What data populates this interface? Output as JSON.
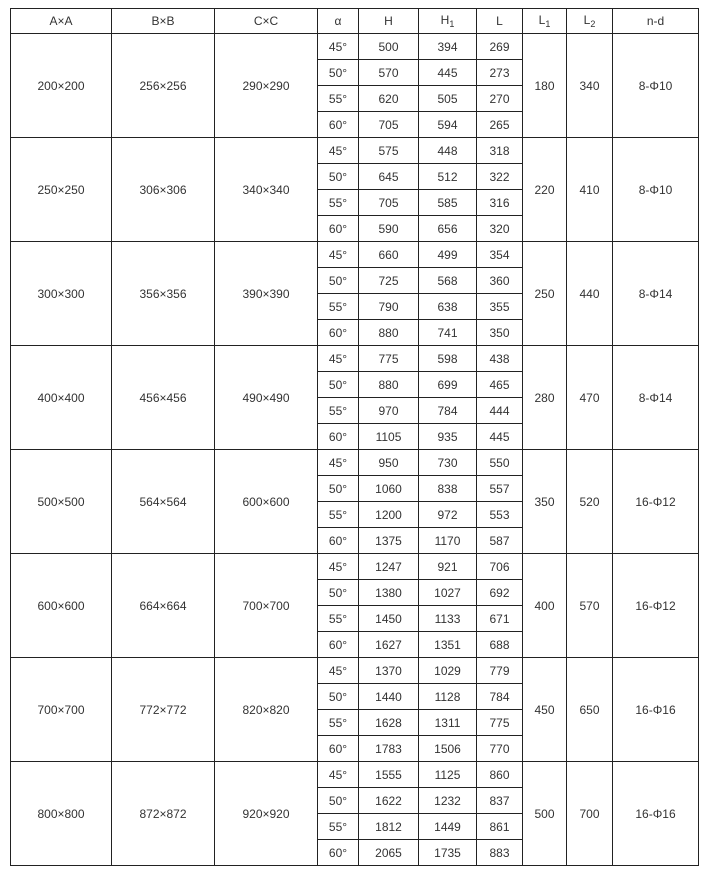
{
  "headers": [
    "A×A",
    "B×B",
    "C×C",
    "α",
    "H",
    "H1",
    "L",
    "L1",
    "L2",
    "n-d"
  ],
  "groups": [
    {
      "a": "200×200",
      "b": "256×256",
      "c": "290×290",
      "l1": "180",
      "l2": "340",
      "nd": "8-Φ10",
      "rows": [
        [
          "45°",
          "500",
          "394",
          "269"
        ],
        [
          "50°",
          "570",
          "445",
          "273"
        ],
        [
          "55°",
          "620",
          "505",
          "270"
        ],
        [
          "60°",
          "705",
          "594",
          "265"
        ]
      ]
    },
    {
      "a": "250×250",
      "b": "306×306",
      "c": "340×340",
      "l1": "220",
      "l2": "410",
      "nd": "8-Φ10",
      "rows": [
        [
          "45°",
          "575",
          "448",
          "318"
        ],
        [
          "50°",
          "645",
          "512",
          "322"
        ],
        [
          "55°",
          "705",
          "585",
          "316"
        ],
        [
          "60°",
          "590",
          "656",
          "320"
        ]
      ]
    },
    {
      "a": "300×300",
      "b": "356×356",
      "c": "390×390",
      "l1": "250",
      "l2": "440",
      "nd": "8-Φ14",
      "rows": [
        [
          "45°",
          "660",
          "499",
          "354"
        ],
        [
          "50°",
          "725",
          "568",
          "360"
        ],
        [
          "55°",
          "790",
          "638",
          "355"
        ],
        [
          "60°",
          "880",
          "741",
          "350"
        ]
      ]
    },
    {
      "a": "400×400",
      "b": "456×456",
      "c": "490×490",
      "l1": "280",
      "l2": "470",
      "nd": "8-Φ14",
      "rows": [
        [
          "45°",
          "775",
          "598",
          "438"
        ],
        [
          "50°",
          "880",
          "699",
          "465"
        ],
        [
          "55°",
          "970",
          "784",
          "444"
        ],
        [
          "60°",
          "1105",
          "935",
          "445"
        ]
      ]
    },
    {
      "a": "500×500",
      "b": "564×564",
      "c": "600×600",
      "l1": "350",
      "l2": "520",
      "nd": "16-Φ12",
      "rows": [
        [
          "45°",
          "950",
          "730",
          "550"
        ],
        [
          "50°",
          "1060",
          "838",
          "557"
        ],
        [
          "55°",
          "1200",
          "972",
          "553"
        ],
        [
          "60°",
          "1375",
          "1170",
          "587"
        ]
      ]
    },
    {
      "a": "600×600",
      "b": "664×664",
      "c": "700×700",
      "l1": "400",
      "l2": "570",
      "nd": "16-Φ12",
      "rows": [
        [
          "45°",
          "1247",
          "921",
          "706"
        ],
        [
          "50°",
          "1380",
          "1027",
          "692"
        ],
        [
          "55°",
          "1450",
          "1133",
          "671"
        ],
        [
          "60°",
          "1627",
          "1351",
          "688"
        ]
      ]
    },
    {
      "a": "700×700",
      "b": "772×772",
      "c": "820×820",
      "l1": "450",
      "l2": "650",
      "nd": "16-Φ16",
      "rows": [
        [
          "45°",
          "1370",
          "1029",
          "779"
        ],
        [
          "50°",
          "1440",
          "1128",
          "784"
        ],
        [
          "55°",
          "1628",
          "1311",
          "775"
        ],
        [
          "60°",
          "1783",
          "1506",
          "770"
        ]
      ]
    },
    {
      "a": "800×800",
      "b": "872×872",
      "c": "920×920",
      "l1": "500",
      "l2": "700",
      "nd": "16-Φ16",
      "rows": [
        [
          "45°",
          "1555",
          "1125",
          "860"
        ],
        [
          "50°",
          "1622",
          "1232",
          "837"
        ],
        [
          "55°",
          "1812",
          "1449",
          "861"
        ],
        [
          "60°",
          "2065",
          "1735",
          "883"
        ]
      ]
    }
  ]
}
